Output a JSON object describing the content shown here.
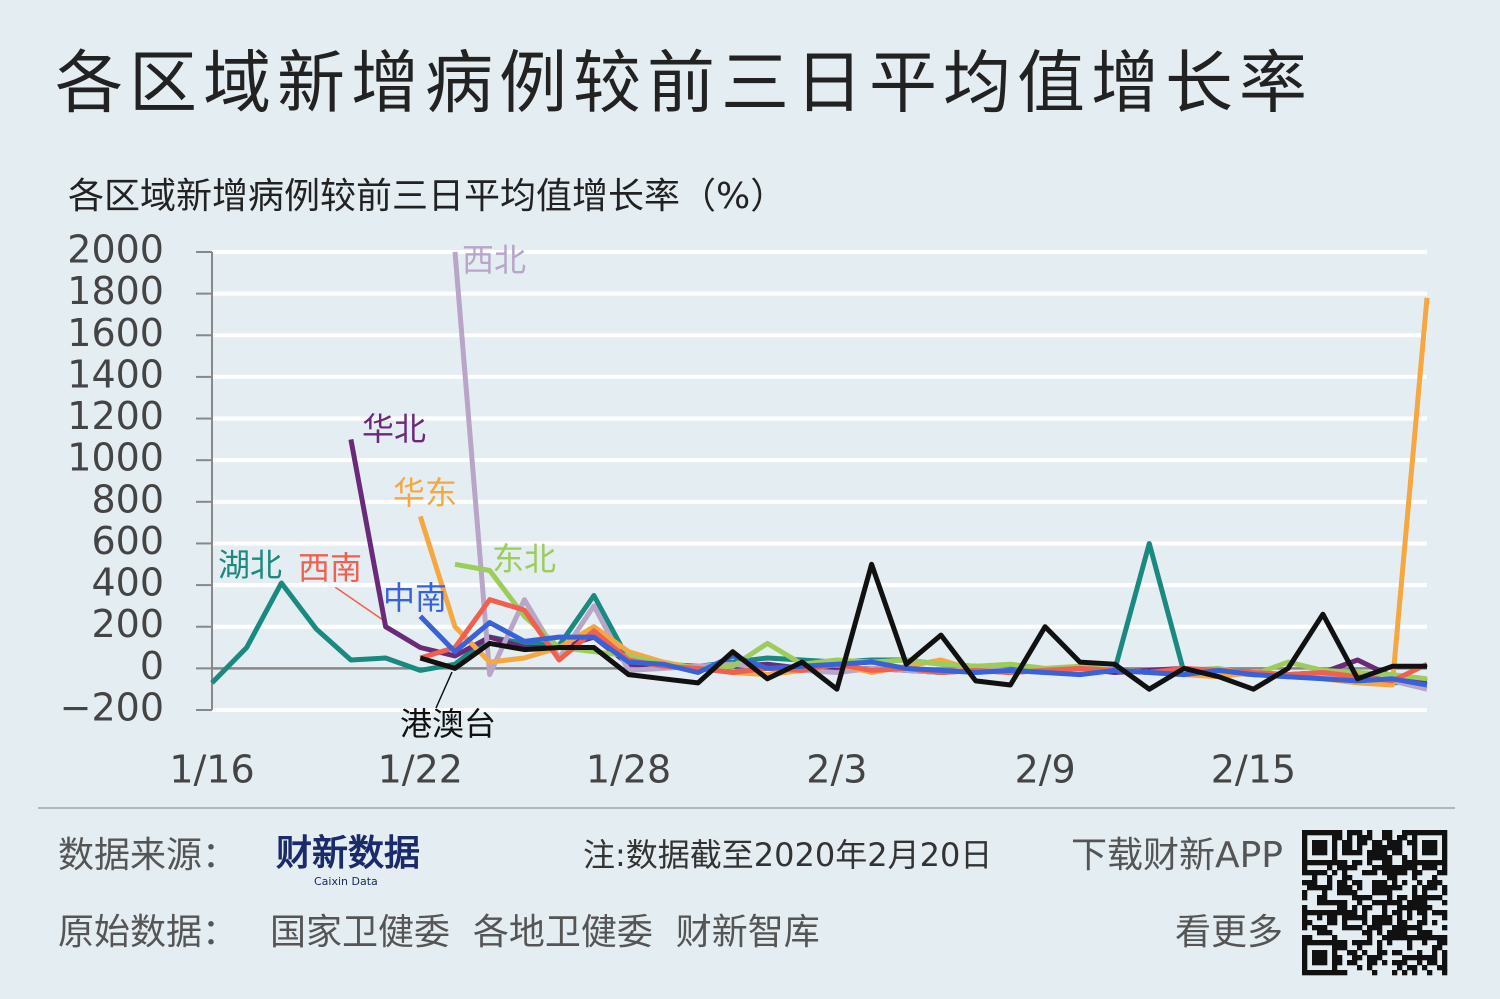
{
  "chart_data": {
    "type": "line",
    "title": "各区域新增病例较前三日平均值增长率",
    "subtitle": "各区域新增病例较前三日平均值增长率（%）",
    "categories": [
      "1/16",
      null,
      null,
      null,
      null,
      null,
      "1/22",
      null,
      null,
      null,
      null,
      null,
      "1/28",
      null,
      null,
      null,
      null,
      null,
      "2/3",
      null,
      null,
      null,
      null,
      null,
      "2/9",
      null,
      null,
      null,
      null,
      null,
      "2/15",
      null,
      null,
      null,
      null,
      null
    ],
    "ylim": [
      -200,
      2000
    ],
    "yticks": [
      {
        "value": -200,
        "label": "−200"
      },
      0,
      200,
      400,
      600,
      800,
      1000,
      1200,
      1400,
      1600,
      1800,
      2000
    ],
    "grid": true,
    "series": [
      {
        "name": "湖北",
        "color": "#1a8a80",
        "values": [
          -70,
          100,
          410,
          190,
          40,
          50,
          -10,
          20,
          150,
          120,
          110,
          350,
          40,
          20,
          10,
          30,
          50,
          40,
          30,
          40,
          40,
          20,
          10,
          0,
          -10,
          -20,
          -10,
          600,
          -20,
          -10,
          -20,
          -40,
          -30,
          -20,
          -70,
          -60
        ]
      },
      {
        "name": "华北",
        "color": "#6a2a7a",
        "values": [
          null,
          null,
          null,
          null,
          1100,
          200,
          100,
          60,
          150,
          100,
          100,
          150,
          20,
          10,
          0,
          10,
          20,
          0,
          -10,
          0,
          -10,
          -20,
          -10,
          -20,
          -10,
          0,
          -20,
          -10,
          0,
          -20,
          -30,
          -30,
          -20,
          40,
          -40,
          -60
        ]
      },
      {
        "name": "西北",
        "color": "#b8a5c8",
        "values": [
          null,
          null,
          null,
          null,
          null,
          null,
          null,
          2000,
          -30,
          330,
          50,
          300,
          -10,
          0,
          10,
          20,
          0,
          -10,
          -20,
          0,
          -10,
          -20,
          0,
          -10,
          -20,
          0,
          -10,
          -20,
          -30,
          -20,
          -30,
          -40,
          -30,
          -50,
          -60,
          -100
        ]
      },
      {
        "name": "华东",
        "color": "#f5a742",
        "values": [
          null,
          null,
          null,
          null,
          null,
          null,
          730,
          200,
          30,
          50,
          100,
          200,
          80,
          30,
          0,
          -20,
          -30,
          -10,
          20,
          -20,
          10,
          40,
          -10,
          -20,
          -10,
          -20,
          -10,
          -20,
          -30,
          -40,
          -20,
          -30,
          -50,
          -70,
          -80,
          1780
        ]
      },
      {
        "name": "东北",
        "color": "#9ccc5c",
        "values": [
          null,
          null,
          null,
          null,
          null,
          null,
          null,
          500,
          470,
          250,
          100,
          80,
          60,
          20,
          0,
          10,
          120,
          20,
          40,
          30,
          40,
          20,
          10,
          20,
          0,
          10,
          -10,
          -20,
          -10,
          0,
          -30,
          30,
          -10,
          -20,
          -30,
          -50
        ]
      },
      {
        "name": "西南",
        "color": "#f06050",
        "values": [
          null,
          null,
          null,
          null,
          null,
          null,
          50,
          100,
          330,
          280,
          40,
          180,
          40,
          10,
          0,
          -20,
          0,
          -10,
          20,
          -10,
          0,
          -20,
          -10,
          -20,
          -10,
          0,
          -10,
          -20,
          0,
          -10,
          -20,
          -30,
          -20,
          -40,
          -60,
          20
        ]
      },
      {
        "name": "中南",
        "color": "#3a62d8",
        "values": [
          null,
          null,
          null,
          null,
          null,
          null,
          250,
          80,
          220,
          130,
          150,
          150,
          30,
          20,
          -20,
          60,
          0,
          10,
          20,
          30,
          0,
          -10,
          -20,
          -10,
          -20,
          -30,
          -10,
          -20,
          -30,
          -10,
          -30,
          -40,
          -50,
          -60,
          -50,
          -80
        ]
      },
      {
        "name": "港澳台",
        "color": "#111111",
        "values": [
          null,
          null,
          null,
          null,
          null,
          null,
          50,
          0,
          120,
          90,
          100,
          100,
          -30,
          -50,
          -70,
          80,
          -50,
          30,
          -100,
          500,
          20,
          160,
          -60,
          -80,
          200,
          30,
          20,
          -100,
          0,
          -40,
          -100,
          0,
          260,
          -50,
          10,
          10
        ]
      }
    ]
  },
  "footer": {
    "source_label": "数据来源：",
    "logo": "财新数据",
    "logo_sub": "Caixin Data",
    "note": "注:数据截至2020年2月20日",
    "download": "下载财新APP",
    "raw_label": "原始数据：",
    "raw_sources": "国家卫健委  各地卫健委  财新智库",
    "more": "看更多"
  }
}
